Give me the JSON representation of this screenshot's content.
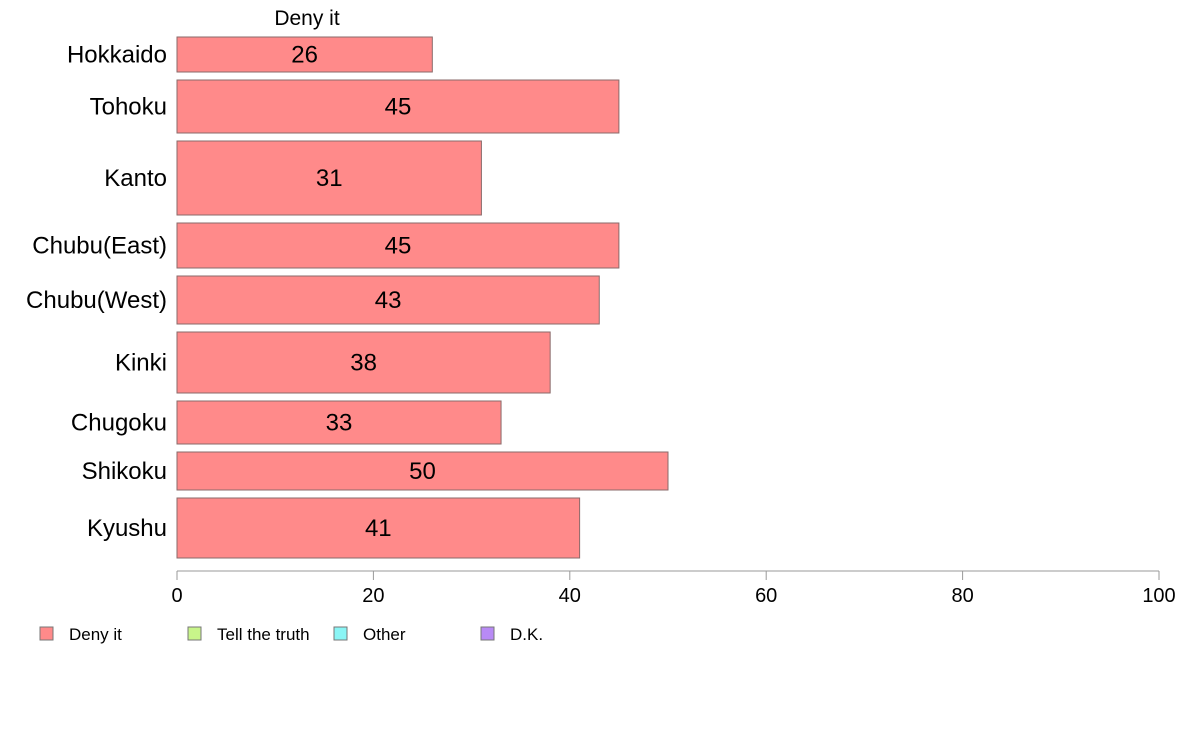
{
  "chart_data": {
    "type": "bar",
    "orientation": "horizontal",
    "stacked": true,
    "categories": [
      "Hokkaido",
      "Tohoku",
      "Kanto",
      "Chubu(East)",
      "Chubu(West)",
      "Kinki",
      "Chugoku",
      "Shikoku",
      "Kyushu"
    ],
    "series": [
      {
        "name": "Deny it",
        "color": "#ff8a8a",
        "values": [
          26,
          45,
          31,
          45,
          43,
          38,
          33,
          50,
          41
        ]
      }
    ],
    "series_title": "Deny it",
    "xlim": [
      0,
      100
    ],
    "xticks": [
      0,
      20,
      40,
      60,
      80,
      100
    ],
    "grid": false,
    "legend": {
      "position": "bottom-left",
      "items": [
        {
          "label": "Deny it",
          "color": "#ff8a8a"
        },
        {
          "label": "Tell the truth",
          "color": "#c8f58a"
        },
        {
          "label": "Other",
          "color": "#8af5f5"
        },
        {
          "label": "D.K.",
          "color": "#b88af5"
        }
      ]
    }
  }
}
